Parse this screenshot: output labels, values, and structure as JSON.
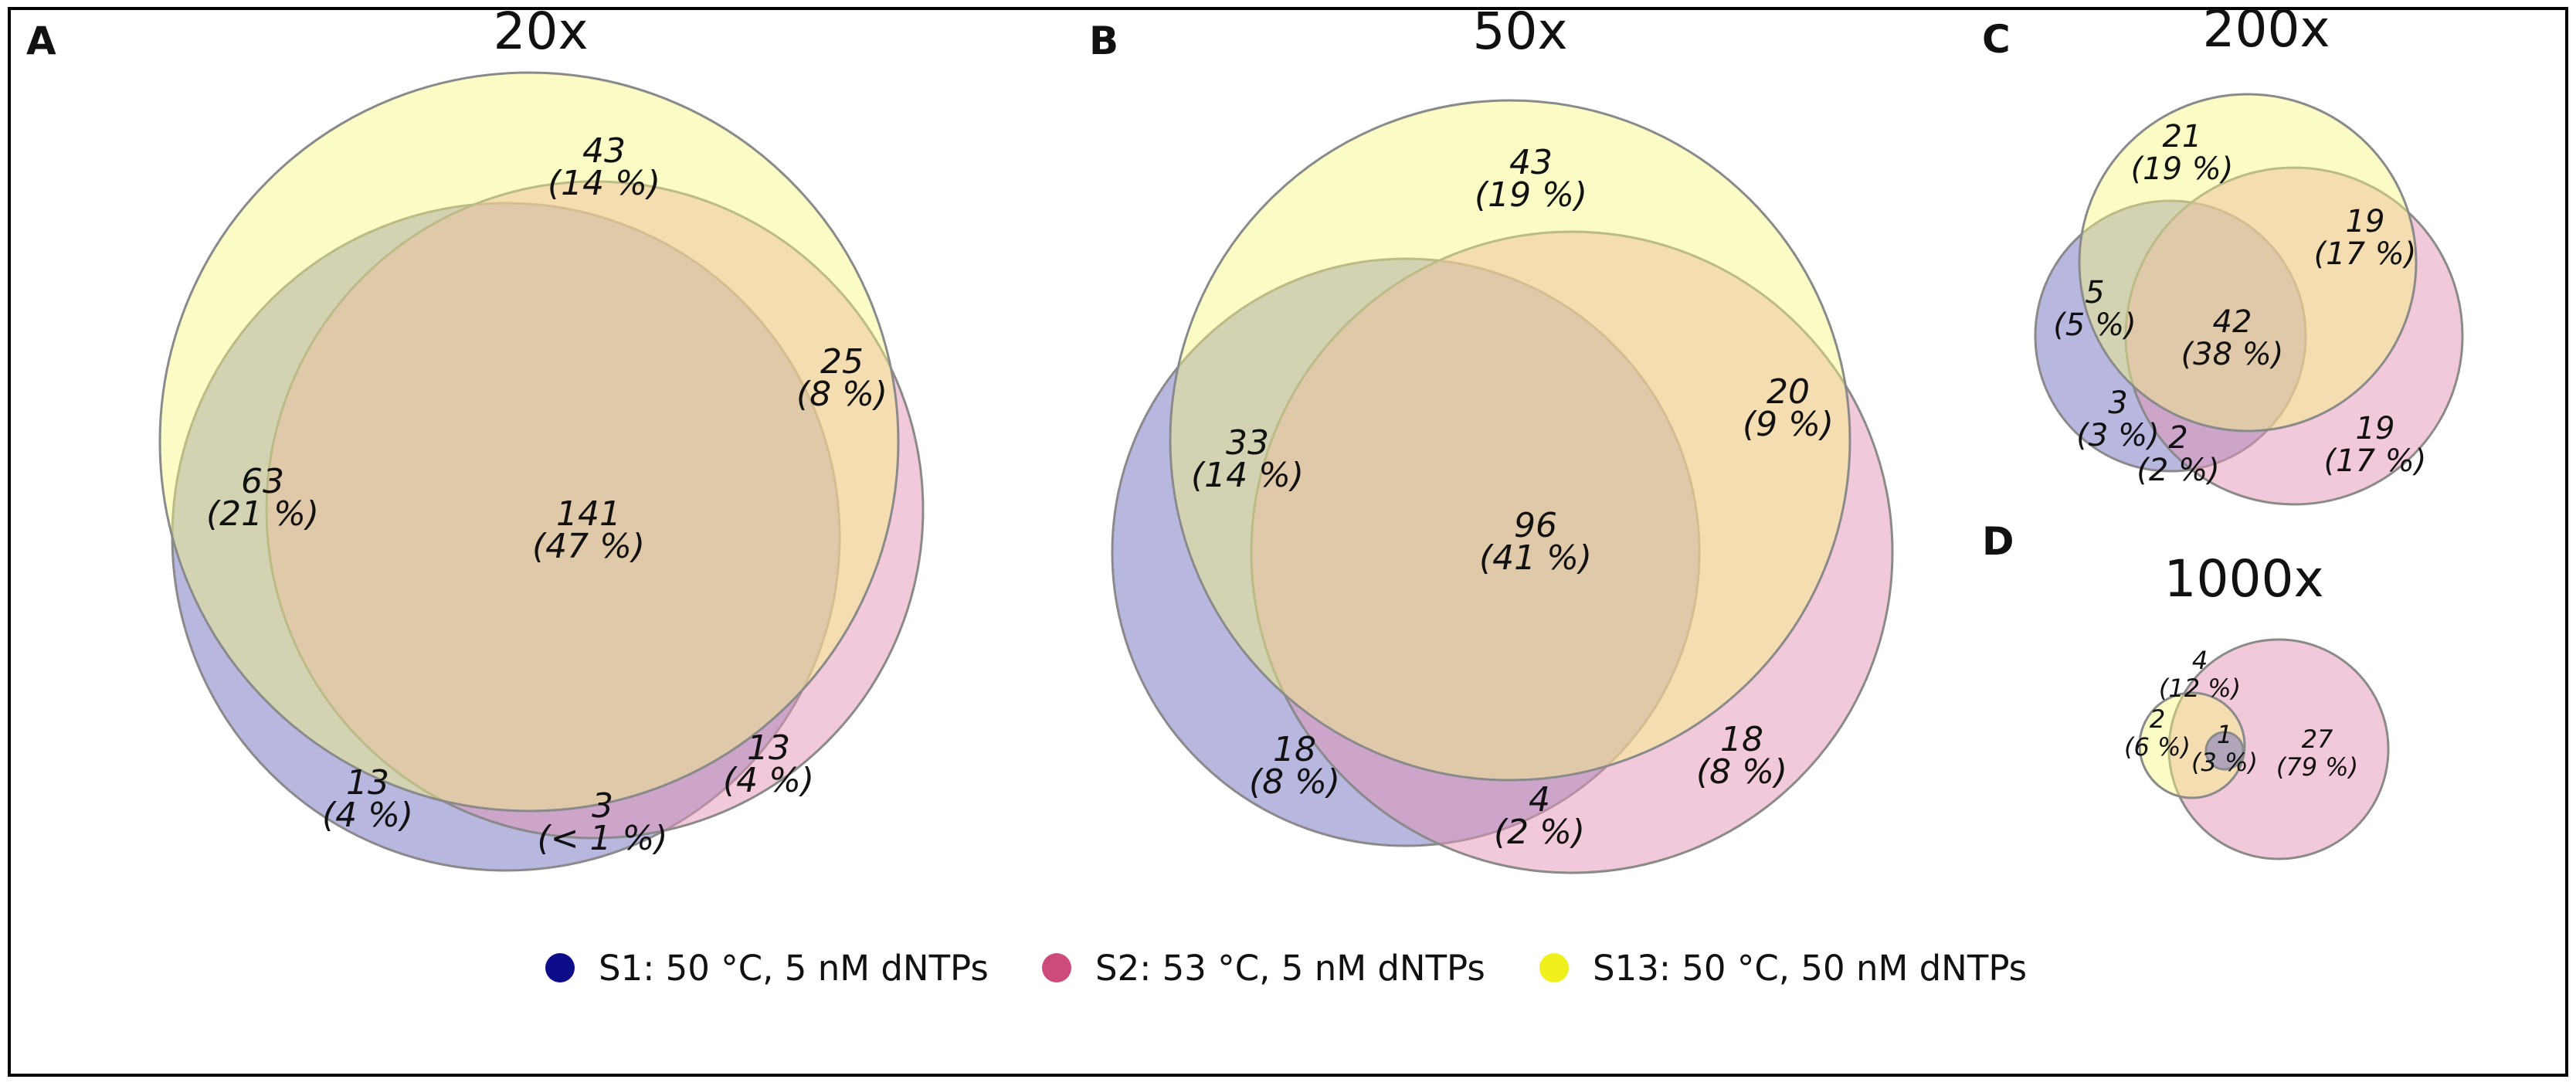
{
  "colors": {
    "s1": "#6f6fc2",
    "s2": "#e393b6",
    "s13": "#f6f67e",
    "s1_legend": "#0d0d8a",
    "s2_legend": "#cd4b7c",
    "s13_legend": "#f0f01c",
    "outline": "#8a8a8a",
    "frame": "#000000"
  },
  "panels": {
    "A": {
      "letter": "A",
      "title": "20x",
      "labels": [
        {
          "n": "43",
          "p": "(14 %)"
        },
        {
          "n": "25",
          "p": "(8 %)"
        },
        {
          "n": "63",
          "p": "(21 %)"
        },
        {
          "n": "141",
          "p": "(47 %)"
        },
        {
          "n": "13",
          "p": "(4 %)"
        },
        {
          "n": "13",
          "p": "(4 %)"
        },
        {
          "n": "3",
          "p": "(< 1 %)"
        }
      ]
    },
    "B": {
      "letter": "B",
      "title": "50x",
      "labels": [
        {
          "n": "43",
          "p": "(19 %)"
        },
        {
          "n": "20",
          "p": "(9 %)"
        },
        {
          "n": "33",
          "p": "(14 %)"
        },
        {
          "n": "96",
          "p": "(41 %)"
        },
        {
          "n": "18",
          "p": "(8 %)"
        },
        {
          "n": "18",
          "p": "(8 %)"
        },
        {
          "n": "4",
          "p": "(2 %)"
        }
      ]
    },
    "C": {
      "letter": "C",
      "title": "200x",
      "labels": [
        {
          "n": "21",
          "p": "(19 %)"
        },
        {
          "n": "19",
          "p": "(17 %)"
        },
        {
          "n": "5",
          "p": "(5 %)"
        },
        {
          "n": "42",
          "p": "(38 %)"
        },
        {
          "n": "3",
          "p": "(3 %)"
        },
        {
          "n": "2",
          "p": "(2 %)"
        },
        {
          "n": "19",
          "p": "(17 %)"
        }
      ]
    },
    "D": {
      "letter": "D",
      "title": "1000x",
      "labels": [
        {
          "n": "4",
          "p": "(12 %)"
        },
        {
          "n": "2",
          "p": "(6 %)"
        },
        {
          "n": "1",
          "p": "(3 %)"
        },
        {
          "n": "27",
          "p": "(79 %)"
        }
      ]
    }
  },
  "legend": [
    {
      "label": "S1: 50 °C, 5 nM dNTPs"
    },
    {
      "label": "S2: 53 °C, 5 nM dNTPs"
    },
    {
      "label": "S13: 50 °C, 50 nM dNTPs"
    }
  ]
}
